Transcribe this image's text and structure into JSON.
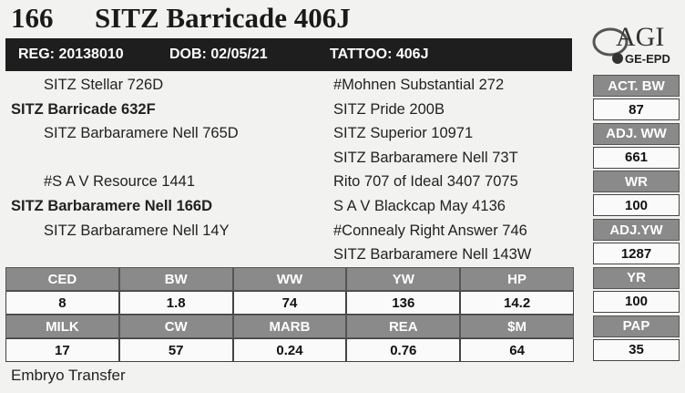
{
  "header": {
    "lot": "166",
    "name": "SITZ Barricade 406J",
    "reg": "REG: 20138010",
    "dob": "DOB: 02/05/21",
    "tattoo": "TATTOO: 406J"
  },
  "logo": {
    "brand": "AGI",
    "tag": "GE-EPD"
  },
  "pedigree": {
    "left": [
      {
        "text": "SITZ Stellar 726D",
        "bold": false
      },
      {
        "text": "SITZ Barricade 632F",
        "bold": true
      },
      {
        "text": "SITZ Barbaramere Nell 765D",
        "bold": false
      },
      null,
      {
        "text": "#S A V Resource 1441",
        "bold": false
      },
      {
        "text": "SITZ Barbaramere Nell 166D",
        "bold": true
      },
      {
        "text": "SITZ Barbaramere Nell 14Y",
        "bold": false
      },
      null
    ],
    "right": [
      "#Mohnen Substantial 272",
      "SITZ Pride 200B",
      "SITZ Superior 10971",
      "SITZ Barbaramere Nell 73T",
      "Rito 707 of Ideal 3407 7075",
      "S A V Blackcap May 4136",
      "#Connealy Right Answer 746",
      "SITZ Barbaramere Nell 143W"
    ]
  },
  "stats": [
    {
      "label": "ACT. BW",
      "value": "87"
    },
    {
      "label": "ADJ. WW",
      "value": "661"
    },
    {
      "label": "WR",
      "value": "100"
    },
    {
      "label": "ADJ.YW",
      "value": "1287"
    },
    {
      "label": "YR",
      "value": "100"
    },
    {
      "label": "PAP",
      "value": "35"
    }
  ],
  "epd": {
    "rows": [
      {
        "labels": [
          "CED",
          "BW",
          "WW",
          "YW",
          "HP"
        ],
        "values": [
          "8",
          "1.8",
          "74",
          "136",
          "14.2"
        ]
      },
      {
        "labels": [
          "MILK",
          "CW",
          "MARB",
          "REA",
          "$M"
        ],
        "values": [
          "17",
          "57",
          "0.24",
          "0.76",
          "64"
        ]
      }
    ]
  },
  "footer": "Embryo Transfer"
}
